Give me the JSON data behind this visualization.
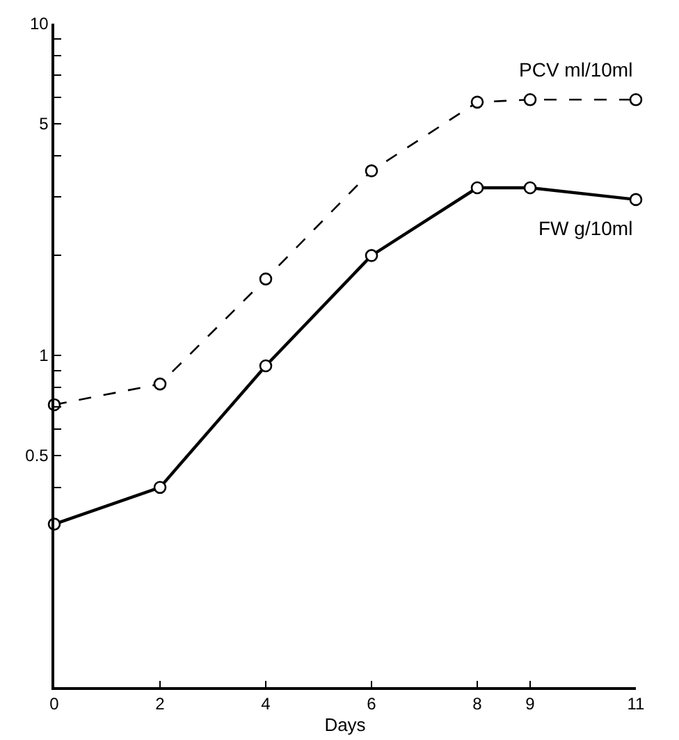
{
  "chart_data": {
    "type": "line",
    "xlabel": "Days",
    "x": [
      0,
      2,
      4,
      6,
      8,
      9,
      11
    ],
    "series": [
      {
        "name": "PCV ml/10ml",
        "color": "#000000",
        "line_style": "dashed",
        "values": [
          0.71,
          0.82,
          1.7,
          3.6,
          5.8,
          5.9,
          5.9
        ]
      },
      {
        "name": "FW g/10ml",
        "color": "#000000",
        "line_style": "solid",
        "values": [
          0.31,
          0.4,
          0.93,
          2.0,
          3.2,
          3.2,
          2.95
        ]
      }
    ],
    "log": "y",
    "xlim": [
      0,
      11
    ],
    "ylim": [
      0.1,
      10
    ],
    "xticks": [
      0,
      2,
      4,
      6,
      8,
      9,
      11
    ],
    "yticks": [
      {
        "value": 0.4,
        "label": null
      },
      0.5,
      {
        "value": 0.6,
        "label": null
      },
      {
        "value": 0.7,
        "label": null
      },
      {
        "value": 0.8,
        "label": null
      },
      {
        "value": 0.9,
        "label": null
      },
      1,
      {
        "value": 2,
        "label": null
      },
      {
        "value": 3,
        "label": null
      },
      {
        "value": 4,
        "label": null
      },
      5,
      {
        "value": 6,
        "label": null
      },
      {
        "value": 7,
        "label": null
      },
      {
        "value": 8,
        "label": null
      },
      {
        "value": 9,
        "label": null
      },
      10
    ],
    "marker": "circle",
    "grid": false,
    "legend": false
  }
}
